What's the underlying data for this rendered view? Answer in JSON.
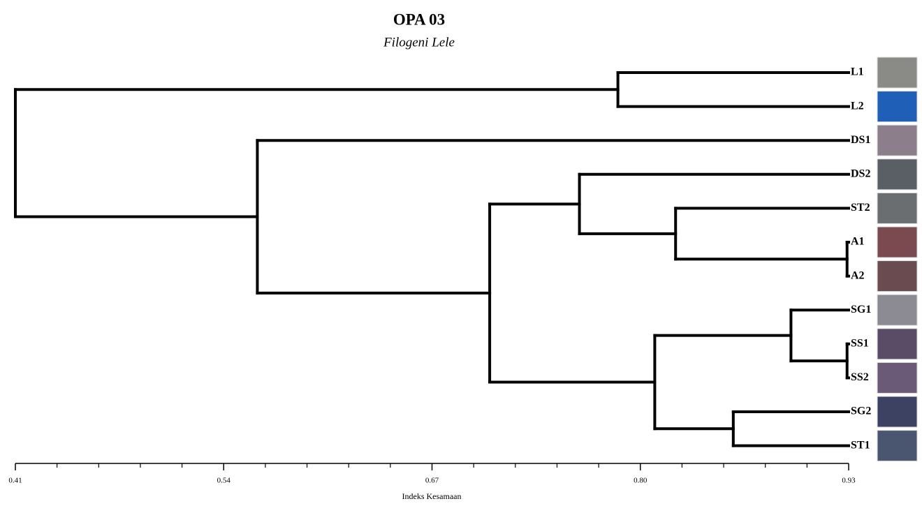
{
  "chart_data": {
    "type": "dendrogram",
    "title": "OPA 03",
    "subtitle": "Filogeni Lele",
    "xlabel": "Indeks Kesamaan",
    "xlim": [
      0.41,
      0.93
    ],
    "xticks": [
      0.41,
      0.54,
      0.67,
      {
        "value": 0.8,
        "label": "0.80"
      },
      0.93
    ],
    "xminorticks": [
      0.436,
      0.462,
      0.488,
      0.514,
      0.566,
      0.592,
      0.618,
      0.644,
      0.696,
      0.722,
      0.748,
      0.774,
      0.826,
      0.852,
      0.878,
      0.904
    ],
    "color": "#000000",
    "tree": {
      "height": 0.41,
      "children": [
        {
          "height": 0.786,
          "children": [
            {
              "label": "L1"
            },
            {
              "label": "L2"
            }
          ]
        },
        {
          "height": 0.561,
          "children": [
            {
              "label": "DS1"
            },
            {
              "height": 0.706,
              "children": [
                {
                  "height": 0.762,
                  "children": [
                    {
                      "label": "DS2"
                    },
                    {
                      "height": 0.822,
                      "children": [
                        {
                          "label": "ST2"
                        },
                        {
                          "height": 0.929,
                          "children": [
                            {
                              "label": "A1"
                            },
                            {
                              "label": "A2"
                            }
                          ]
                        }
                      ]
                    }
                  ]
                },
                {
                  "height": 0.809,
                  "children": [
                    {
                      "height": 0.894,
                      "children": [
                        {
                          "label": "SG1"
                        },
                        {
                          "height": 0.929,
                          "children": [
                            {
                              "label": "SS1"
                            },
                            {
                              "label": "SS2"
                            }
                          ]
                        }
                      ]
                    },
                    {
                      "height": 0.858,
                      "children": [
                        {
                          "label": "SG2"
                        },
                        {
                          "label": "ST1"
                        }
                      ]
                    }
                  ]
                }
              ]
            }
          ]
        }
      ]
    }
  }
}
